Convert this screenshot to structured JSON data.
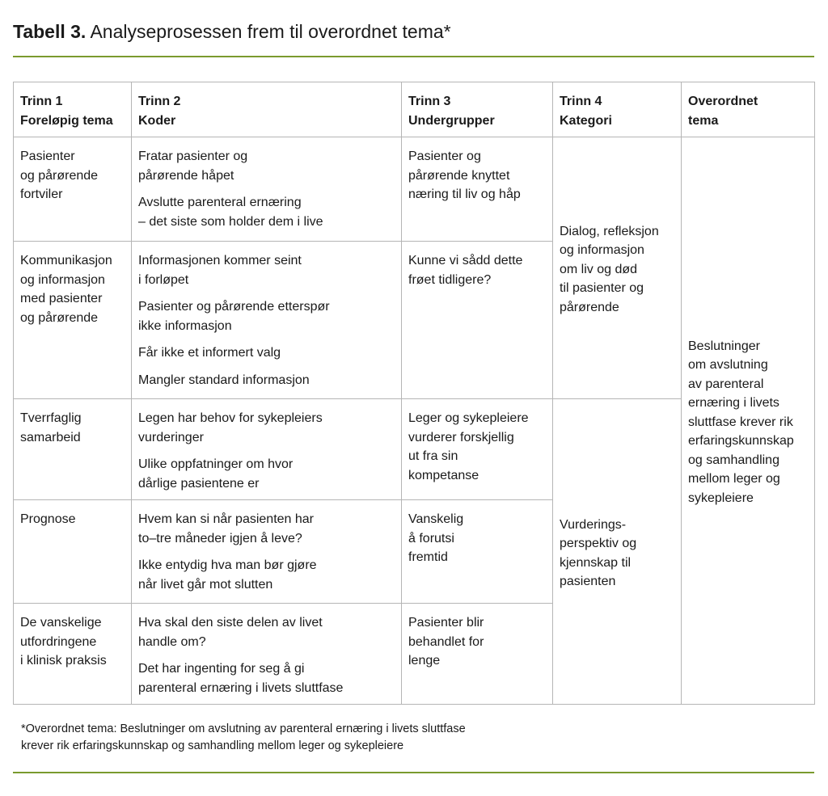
{
  "title": {
    "label": "Tabell 3.",
    "text": " Analyseprosessen frem til overordnet tema*"
  },
  "accent_color": "#7a9a2e",
  "headers": [
    "Trinn 1\nForeløpig tema",
    "Trinn 2\nKoder",
    "Trinn 3\nUndergrupper",
    "Trinn 4\nKategori",
    "Overordnet\ntema"
  ],
  "rows": [
    {
      "trinn1": "Pasienter\nog pårørende\nfortviler",
      "koder": [
        "Fratar pasienter og\npårørende håpet",
        "Avslutte parenteral ernæring\n– det siste som holder dem i live"
      ],
      "trinn3": "Pasienter og\npårørende knyttet\nnæring til liv og håp"
    },
    {
      "trinn1": "Kommunikasjon\nog informasjon\nmed pasienter\nog pårørende",
      "koder": [
        "Informasjonen kommer seint\ni forløpet",
        "Pasienter og pårørende etterspør\nikke informasjon",
        "Får ikke et informert valg",
        "Mangler standard informasjon"
      ],
      "trinn3": "Kunne vi sådd dette\nfrøet tidligere?"
    },
    {
      "trinn1": "Tverrfaglig\nsamarbeid",
      "koder": [
        "Legen har behov for sykepleiers\nvurderinger",
        "Ulike oppfatninger om hvor\ndårlige pasientene er"
      ],
      "trinn3": "Leger og sykepleiere\nvurderer forskjellig\nut fra sin\nkompetanse"
    },
    {
      "trinn1": "Prognose",
      "koder": [
        "Hvem kan si når pasienten har\nto–tre måneder igjen å leve?",
        "Ikke entydig hva man bør gjøre\nnår livet går mot slutten"
      ],
      "trinn3": "Vanskelig\nå forutsi\nfremtid"
    },
    {
      "trinn1": "De vanskelige\nutfordringene\ni klinisk praksis",
      "koder": [
        "Hva skal den siste delen av livet\nhandle om?",
        "Det har ingenting for seg å gi\nparenteral ernæring i livets sluttfase"
      ],
      "trinn3": "Pasienter blir\nbehandlet for\nlenge"
    }
  ],
  "kategori": [
    "Dialog, refleksjon\nog informasjon\nom liv og død\ntil pasienter og\npårørende",
    "Vurderings-\nperspektiv og\nkjennskap til\npasienten"
  ],
  "overordnet": "Beslutninger\nom avslutning\nav parenteral\nernæring i livets\nsluttfase krever rik\nerfaringskunnskap\nog samhandling\nmellom leger og\nsykepleiere",
  "footnote": "*Overordnet tema: Beslutninger om avslutning av parenteral ernæring i livets sluttfase\nkrever rik erfaringskunnskap og samhandling mellom leger og sykepleiere"
}
